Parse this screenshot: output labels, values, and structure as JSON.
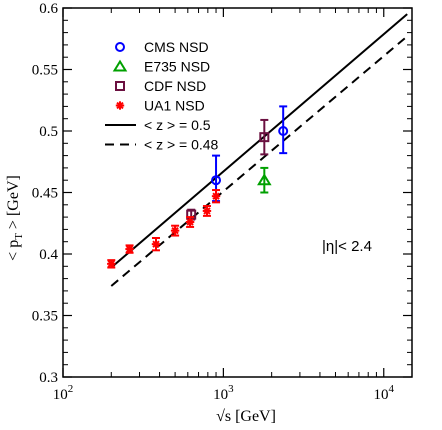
{
  "chart_data": {
    "type": "scatter",
    "title": "",
    "xlabel": "√s  [GeV]",
    "ylabel": "< p_T > [GeV]",
    "xscale": "log",
    "xlim": [
      100,
      15000
    ],
    "ylim": [
      0.3,
      0.6
    ],
    "x_ticks": [
      {
        "value": 100,
        "base": "10",
        "exp": "2"
      },
      {
        "value": 1000,
        "base": "10",
        "exp": "3"
      },
      {
        "value": 10000,
        "base": "10",
        "exp": "4"
      }
    ],
    "y_ticks": [
      "0.3",
      "0.35",
      "0.4",
      "0.45",
      "0.5",
      "0.55",
      "0.6"
    ],
    "y_tick_values": [
      0.3,
      0.35,
      0.4,
      0.45,
      0.5,
      0.55,
      0.6
    ],
    "grid": false,
    "legend_position": "top-left",
    "annotation": "|η|< 2.4",
    "series": [
      {
        "name": "CMS NSD",
        "marker": "circle-open",
        "color": "#0000ff",
        "points": [
          {
            "x": 900,
            "y": 0.46,
            "err_lo": 0.017,
            "err_hi": 0.02
          },
          {
            "x": 2360,
            "y": 0.5,
            "err_lo": 0.018,
            "err_hi": 0.02
          }
        ]
      },
      {
        "name": "E735 NSD",
        "marker": "triangle-open",
        "color": "#00a000",
        "points": [
          {
            "x": 1800,
            "y": 0.46,
            "err_lo": 0.01,
            "err_hi": 0.01
          }
        ]
      },
      {
        "name": "CDF NSD",
        "marker": "square-open",
        "color": "#6b1040",
        "points": [
          {
            "x": 630,
            "y": 0.432,
            "err_lo": 0.004,
            "err_hi": 0.004
          },
          {
            "x": 1800,
            "y": 0.495,
            "err_lo": 0.014,
            "err_hi": 0.014
          }
        ]
      },
      {
        "name": "UA1 NSD",
        "marker": "star",
        "color": "#ff0000",
        "points": [
          {
            "x": 200,
            "y": 0.392,
            "err_lo": 0.003,
            "err_hi": 0.003
          },
          {
            "x": 260,
            "y": 0.404,
            "err_lo": 0.003,
            "err_hi": 0.003
          },
          {
            "x": 380,
            "y": 0.408,
            "err_lo": 0.005,
            "err_hi": 0.005
          },
          {
            "x": 500,
            "y": 0.419,
            "err_lo": 0.004,
            "err_hi": 0.004
          },
          {
            "x": 620,
            "y": 0.426,
            "err_lo": 0.004,
            "err_hi": 0.004
          },
          {
            "x": 790,
            "y": 0.435,
            "err_lo": 0.004,
            "err_hi": 0.004
          },
          {
            "x": 900,
            "y": 0.447,
            "err_lo": 0.005,
            "err_hi": 0.005
          }
        ]
      },
      {
        "name": "< z > = 0.5",
        "marker": "line-solid",
        "color": "#000000",
        "x": [
          200,
          14000
        ],
        "y": [
          0.389,
          0.595
        ]
      },
      {
        "name": "< z > = 0.48",
        "marker": "line-dashed",
        "color": "#000000",
        "x": [
          200,
          14000
        ],
        "y": [
          0.374,
          0.577
        ]
      }
    ]
  }
}
